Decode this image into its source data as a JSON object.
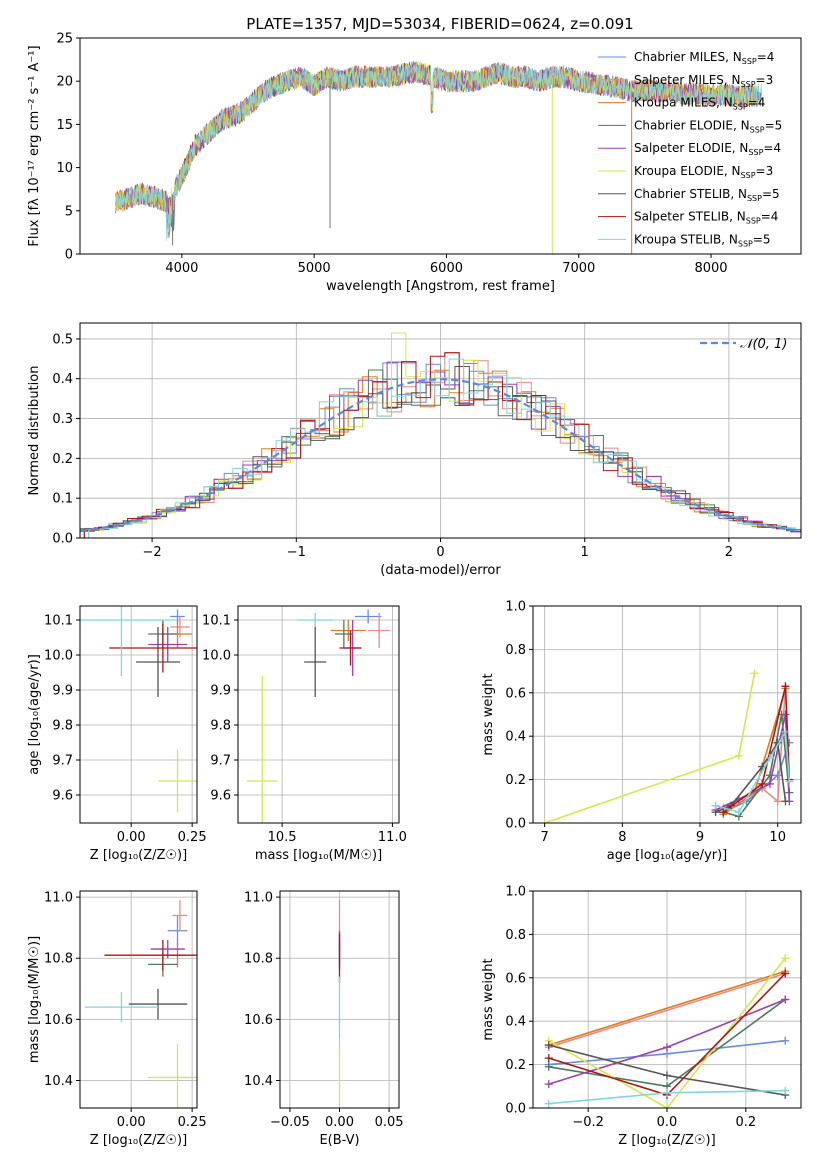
{
  "figure": {
    "title": "PLATE=1357, MJD=53034, FIBERID=0624, z=0.091"
  },
  "models": [
    {
      "name": "Chabrier MILES",
      "nssp": "4",
      "color": "#6a8cdc"
    },
    {
      "name": "Salpeter MILES",
      "nssp": "3",
      "color": "#e88a8a"
    },
    {
      "name": "Kroupa MILES",
      "nssp": "4",
      "color": "#e07b1f"
    },
    {
      "name": "Chabrier ELODIE",
      "nssp": "5",
      "color": "#4f7a5a"
    },
    {
      "name": "Salpeter ELODIE",
      "nssp": "4",
      "color": "#9b3fb5"
    },
    {
      "name": "Kroupa ELODIE",
      "nssp": "3",
      "color": "#d4e84c"
    },
    {
      "name": "Chabrier STELIB",
      "nssp": "5",
      "color": "#555555"
    },
    {
      "name": "Salpeter STELIB",
      "nssp": "4",
      "color": "#b01515"
    },
    {
      "name": "Kroupa STELIB",
      "nssp": "5",
      "color": "#7fd6de"
    }
  ],
  "chart_data": [
    {
      "id": "spectrum",
      "type": "line",
      "xlabel": "wavelength [Angstrom, rest frame]",
      "ylabel": "Flux [fλ 10⁻¹⁷ erg cm⁻² s⁻¹ A⁻¹]",
      "xlim": [
        3230,
        8680
      ],
      "ylim": [
        0,
        25
      ],
      "xticks": [
        4000,
        5000,
        6000,
        7000,
        8000
      ],
      "yticks": [
        0,
        5,
        10,
        15,
        20,
        25
      ],
      "legend": "top-right",
      "series_anchors": {
        "x": [
          3500,
          3600,
          3700,
          3800,
          3900,
          4000,
          4100,
          4200,
          4300,
          4400,
          4500,
          4600,
          4700,
          4800,
          4900,
          5000,
          5100,
          5200,
          5300,
          5400,
          5500,
          5600,
          5700,
          5800,
          5900,
          6000,
          6100,
          6200,
          6300,
          6400,
          6500,
          6600,
          6700,
          6800,
          6900,
          7000,
          7100,
          7200,
          7300,
          7400,
          7500,
          7600,
          7700,
          7800,
          7900,
          8000,
          8100,
          8200,
          8300,
          8400,
          8500,
          8600
        ],
        "y": [
          6,
          6.5,
          7,
          6.5,
          6,
          9,
          12.5,
          14,
          15.5,
          16,
          17,
          18.5,
          19.5,
          20,
          20.5,
          19.5,
          20.5,
          20,
          20.5,
          20.5,
          20.5,
          20.5,
          21,
          21,
          20.5,
          20,
          20,
          20,
          20.5,
          21,
          20.5,
          20.5,
          20,
          20.5,
          20.5,
          20,
          19.8,
          19.5,
          19.3,
          18.8,
          19,
          18.8,
          18.8,
          18.5,
          18.5,
          18.3,
          18.5,
          18.2,
          18.3,
          18.4,
          18,
          18
        ]
      },
      "note_dips": [
        [
          3930,
          1
        ],
        [
          5120,
          3
        ],
        [
          6560,
          20.5
        ],
        [
          6800,
          0
        ],
        [
          7400,
          0
        ]
      ]
    },
    {
      "id": "residuals",
      "type": "histogram",
      "xlabel": "(data-model)/error",
      "ylabel": "Normed distribution",
      "xlim": [
        -2.5,
        2.5
      ],
      "ylim": [
        0,
        0.54
      ],
      "xticks": [
        -2,
        -1,
        0,
        1,
        2
      ],
      "yticks": [
        0.0,
        0.1,
        0.2,
        0.3,
        0.4,
        0.5
      ],
      "legend_label": "𝒩(0, 1)",
      "bin_width": 0.1,
      "curve": "gaussian mean 0 sigma 1"
    },
    {
      "id": "age_vs_Z",
      "type": "scatter",
      "xlabel": "Z [log₁₀(Z/Z☉)]",
      "ylabel": "age  [log₁₀(age/yr)]",
      "xlim": [
        -0.21,
        0.27
      ],
      "ylim": [
        9.52,
        10.14
      ],
      "xticks": [
        0.0,
        0.25
      ],
      "yticks": [
        9.6,
        9.7,
        9.8,
        9.9,
        10.0,
        10.1
      ],
      "points": [
        {
          "x": 0.19,
          "y": 10.11,
          "xerr": 0.03,
          "yerr": 0.02,
          "model": 0
        },
        {
          "x": 0.2,
          "y": 10.08,
          "xerr": 0.04,
          "yerr": 0.03,
          "model": 1
        },
        {
          "x": 0.19,
          "y": 10.06,
          "xerr": 0.06,
          "yerr": 0.04,
          "model": 2
        },
        {
          "x": 0.13,
          "y": 10.06,
          "xerr": 0.06,
          "yerr": 0.04,
          "model": 3
        },
        {
          "x": 0.15,
          "y": 10.03,
          "xerr": 0.08,
          "yerr": 0.05,
          "model": 4
        },
        {
          "x": 0.19,
          "y": 9.64,
          "xerr": 0.08,
          "yerr": 0.09,
          "model": 5
        },
        {
          "x": 0.11,
          "y": 9.98,
          "xerr": 0.09,
          "yerr": 0.1,
          "model": 6
        },
        {
          "x": 0.13,
          "y": 10.02,
          "xerr": 0.22,
          "yerr": 0.07,
          "model": 7
        },
        {
          "x": -0.04,
          "y": 10.1,
          "xerr": 0.22,
          "yerr": 0.16,
          "model": 8
        }
      ]
    },
    {
      "id": "age_vs_mass",
      "type": "scatter",
      "xlabel": "mass [log₁₀(M/M☉)]",
      "ylabel": "",
      "xlim": [
        10.3,
        11.03
      ],
      "ylim": [
        9.52,
        10.14
      ],
      "xticks": [
        10.5,
        11.0
      ],
      "yticks": [
        9.6,
        9.7,
        9.8,
        9.9,
        10.0,
        10.1
      ],
      "points": [
        {
          "x": 10.89,
          "y": 10.11,
          "xerr": 0.06,
          "yerr": 0.02,
          "model": 0
        },
        {
          "x": 10.94,
          "y": 10.07,
          "xerr": 0.05,
          "yerr": 0.05,
          "model": 1
        },
        {
          "x": 10.8,
          "y": 10.07,
          "xerr": 0.08,
          "yerr": 0.03,
          "model": 2
        },
        {
          "x": 10.78,
          "y": 10.06,
          "xerr": 0.04,
          "yerr": 0.04,
          "model": 3
        },
        {
          "x": 10.82,
          "y": 10.02,
          "xerr": 0.04,
          "yerr": 0.08,
          "model": 4
        },
        {
          "x": 10.41,
          "y": 9.64,
          "xerr": 0.07,
          "yerr": 0.3,
          "model": 5
        },
        {
          "x": 10.65,
          "y": 9.98,
          "xerr": 0.05,
          "yerr": 0.1,
          "model": 6
        },
        {
          "x": 10.81,
          "y": 10.02,
          "xerr": 0.05,
          "yerr": 0.05,
          "model": 7
        },
        {
          "x": 10.65,
          "y": 10.1,
          "xerr": 0.08,
          "yerr": 0.02,
          "model": 8
        }
      ]
    },
    {
      "id": "weight_vs_age",
      "type": "line",
      "xlabel": "age  [log₁₀(age/yr)]",
      "ylabel": "mass weight",
      "xlim": [
        6.85,
        10.3
      ],
      "ylim": [
        0,
        1.0
      ],
      "xticks": [
        7,
        8,
        9,
        10
      ],
      "yticks": [
        0.0,
        0.2,
        0.4,
        0.6,
        0.8,
        1.0
      ],
      "series": [
        {
          "model": 0,
          "x": [
            9.3,
            9.6,
            10.0,
            10.15
          ],
          "y": [
            0.05,
            0.1,
            0.22,
            0.37
          ]
        },
        {
          "model": 1,
          "x": [
            9.3,
            9.8,
            10.0,
            10.1
          ],
          "y": [
            0.07,
            0.16,
            0.1,
            0.63
          ]
        },
        {
          "model": 2,
          "x": [
            9.3,
            9.7,
            10.1
          ],
          "y": [
            0.04,
            0.14,
            0.62
          ]
        },
        {
          "model": 3,
          "x": [
            9.3,
            9.5,
            9.9,
            10.05,
            10.15
          ],
          "y": [
            0.05,
            0.03,
            0.22,
            0.5,
            0.14
          ]
        },
        {
          "model": 4,
          "x": [
            9.2,
            9.5,
            9.9,
            10.1,
            10.15
          ],
          "y": [
            0.06,
            0.11,
            0.18,
            0.5,
            0.1
          ]
        },
        {
          "model": 5,
          "x": [
            7.0,
            9.5,
            9.7
          ],
          "y": [
            0.0,
            0.31,
            0.69
          ]
        },
        {
          "model": 6,
          "x": [
            9.2,
            9.4,
            9.8,
            10.0,
            10.1
          ],
          "y": [
            0.05,
            0.08,
            0.26,
            0.37,
            0.1
          ]
        },
        {
          "model": 7,
          "x": [
            9.3,
            9.8,
            10.1,
            10.15
          ],
          "y": [
            0.05,
            0.18,
            0.63,
            0.2
          ]
        },
        {
          "model": 8,
          "x": [
            9.2,
            9.5,
            9.9,
            10.1,
            10.15
          ],
          "y": [
            0.08,
            0.05,
            0.3,
            0.42,
            0.19
          ]
        }
      ]
    },
    {
      "id": "mass_vs_Z",
      "type": "scatter",
      "xlabel": "Z [log₁₀(Z/Z☉)]",
      "ylabel": "mass [log₁₀(M/M☉)]",
      "xlim": [
        -0.21,
        0.27
      ],
      "ylim": [
        10.31,
        11.02
      ],
      "xticks": [
        0.0,
        0.25
      ],
      "yticks": [
        10.4,
        10.6,
        10.8,
        11.0
      ],
      "points": [
        {
          "x": 0.19,
          "y": 10.89,
          "xerr": 0.04,
          "yerr": 0.05,
          "model": 0
        },
        {
          "x": 0.2,
          "y": 10.94,
          "xerr": 0.03,
          "yerr": 0.05,
          "model": 1
        },
        {
          "x": 0.19,
          "y": 10.81,
          "xerr": 0.03,
          "yerr": 0.04,
          "model": 2
        },
        {
          "x": 0.13,
          "y": 10.78,
          "xerr": 0.06,
          "yerr": 0.04,
          "model": 3
        },
        {
          "x": 0.15,
          "y": 10.83,
          "xerr": 0.07,
          "yerr": 0.03,
          "model": 4
        },
        {
          "x": 0.19,
          "y": 10.41,
          "xerr": 0.12,
          "yerr": 0.11,
          "model": 5
        },
        {
          "x": 0.11,
          "y": 10.65,
          "xerr": 0.12,
          "yerr": 0.05,
          "model": 6
        },
        {
          "x": 0.13,
          "y": 10.81,
          "xerr": 0.24,
          "yerr": 0.05,
          "model": 7
        },
        {
          "x": -0.04,
          "y": 10.64,
          "xerr": 0.15,
          "yerr": 0.05,
          "model": 8
        }
      ]
    },
    {
      "id": "mass_vs_ebv",
      "type": "scatter",
      "xlabel": "E(B-V)",
      "ylabel": "",
      "xlim": [
        -0.06,
        0.06
      ],
      "ylim": [
        10.31,
        11.02
      ],
      "xticks": [
        -0.05,
        0.0,
        0.05
      ],
      "xtick_labels": [
        "−0.05",
        "0.00",
        "0.05"
      ],
      "yticks": [
        10.4,
        10.6,
        10.8,
        11.0
      ],
      "points": [
        {
          "x": 0,
          "y": 10.89,
          "yerr": 0.1,
          "model": 1
        },
        {
          "x": 0,
          "y": 10.81,
          "yerr": 0.05,
          "model": 0
        },
        {
          "x": 0,
          "y": 10.83,
          "yerr": 0.06,
          "model": 4
        },
        {
          "x": 0,
          "y": 10.8,
          "yerr": 0.08,
          "model": 7
        },
        {
          "x": 0,
          "y": 10.41,
          "yerr": 0.1,
          "model": 5
        },
        {
          "x": 0,
          "y": 10.64,
          "yerr": 0.1,
          "model": 8
        }
      ]
    },
    {
      "id": "weight_vs_Z",
      "type": "line",
      "xlabel": "Z [log₁₀(Z/Z☉)]",
      "ylabel": "mass weight",
      "xlim": [
        -0.34,
        0.34
      ],
      "ylim": [
        0,
        1.0
      ],
      "xticks": [
        -0.2,
        0.0,
        0.2
      ],
      "xtick_labels": [
        "−0.2",
        "0.0",
        "0.2"
      ],
      "yticks": [
        0.0,
        0.2,
        0.4,
        0.6,
        0.8,
        1.0
      ],
      "series": [
        {
          "model": 0,
          "x": [
            -0.3,
            0.0,
            0.3
          ],
          "y": [
            0.2,
            0.25,
            0.31
          ]
        },
        {
          "model": 1,
          "x": [
            -0.3,
            0.3
          ],
          "y": [
            0.28,
            0.62
          ]
        },
        {
          "model": 2,
          "x": [
            -0.3,
            0.3
          ],
          "y": [
            0.29,
            0.63
          ]
        },
        {
          "model": 3,
          "x": [
            -0.3,
            0.0,
            0.3
          ],
          "y": [
            0.19,
            0.1,
            0.5
          ]
        },
        {
          "model": 4,
          "x": [
            -0.3,
            0.0,
            0.3
          ],
          "y": [
            0.11,
            0.28,
            0.5
          ]
        },
        {
          "model": 5,
          "x": [
            -0.3,
            0.0,
            0.3
          ],
          "y": [
            0.31,
            0.0,
            0.69
          ]
        },
        {
          "model": 6,
          "x": [
            -0.3,
            0.0,
            0.3
          ],
          "y": [
            0.29,
            0.15,
            0.06
          ]
        },
        {
          "model": 7,
          "x": [
            -0.3,
            0.0,
            0.3
          ],
          "y": [
            0.23,
            0.06,
            0.62
          ]
        },
        {
          "model": 8,
          "x": [
            -0.3,
            0.0,
            0.3
          ],
          "y": [
            0.02,
            0.07,
            0.08
          ]
        }
      ]
    }
  ]
}
